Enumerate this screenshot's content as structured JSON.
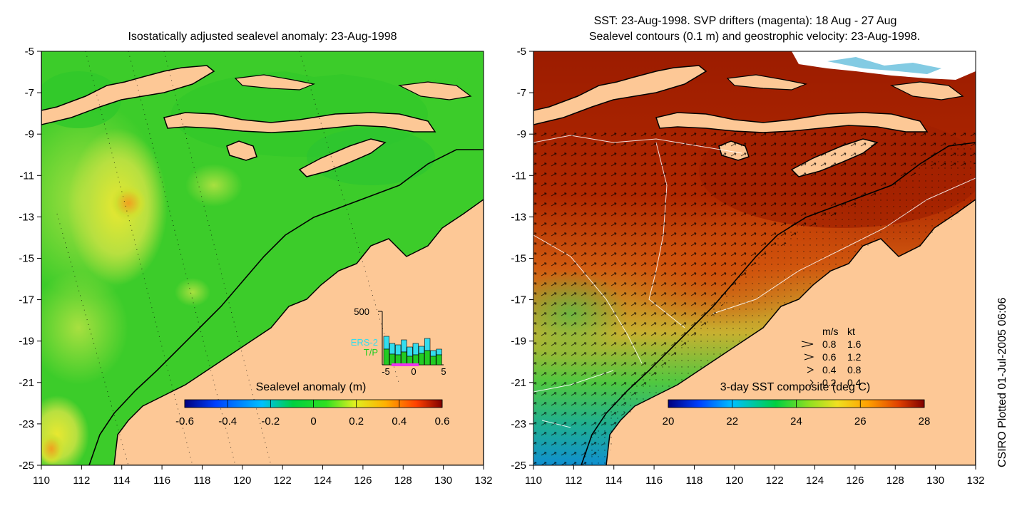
{
  "left_panel": {
    "title": "Isostatically adjusted sealevel anomaly: 23-Aug-1998",
    "x_ticks": [
      "110",
      "112",
      "114",
      "116",
      "118",
      "120",
      "122",
      "124",
      "126",
      "128",
      "130",
      "132"
    ],
    "y_ticks": [
      "-5",
      "-7",
      "-9",
      "-11",
      "-13",
      "-15",
      "-17",
      "-19",
      "-21",
      "-23",
      "-25"
    ],
    "colorbar": {
      "label": "Sealevel anomaly (m)",
      "ticks": [
        "-0.6",
        "-0.4",
        "-0.2",
        "0",
        "0.2",
        "0.4",
        "0.6"
      ],
      "range": [
        -0.6,
        0.6
      ]
    },
    "histogram": {
      "y_max_label": "500",
      "x_ticks": [
        "-5",
        "0",
        "5"
      ],
      "series_labels": [
        "ERS-2",
        "T/P"
      ],
      "series_colors": [
        "#33ddee",
        "#22cc22"
      ],
      "highlight_color": "#ee33ee"
    }
  },
  "right_panel": {
    "title_line1": "SST: 23-Aug-1998. SVP drifters (magenta): 18 Aug - 27 Aug",
    "title_line2": "Sealevel contours (0.1 m) and geostrophic velocity: 23-Aug-1998.",
    "x_ticks": [
      "110",
      "112",
      "114",
      "116",
      "118",
      "120",
      "122",
      "124",
      "126",
      "128",
      "130",
      "132"
    ],
    "y_ticks": [
      "-5",
      "-7",
      "-9",
      "-11",
      "-13",
      "-15",
      "-17",
      "-19",
      "-21",
      "-23",
      "-25"
    ],
    "colorbar": {
      "label": "3-day SST composite (deg C)",
      "ticks": [
        "20",
        "22",
        "24",
        "26",
        "28"
      ],
      "range": [
        20,
        28
      ]
    },
    "velocity_legend": {
      "header_ms": "m/s",
      "header_kt": "kt",
      "rows": [
        {
          "ms": "0.8",
          "kt": "1.6"
        },
        {
          "ms": "0.6",
          "kt": "1.2"
        },
        {
          "ms": "0.4",
          "kt": "0.8"
        },
        {
          "ms": "0.2",
          "kt": "0.4"
        }
      ]
    }
  },
  "credit": "CSIRO Plotted 01-Jul-2005 06:06",
  "colors": {
    "land": "#fdc896",
    "ocean_base": "#22cc22",
    "sst_warm": "#a81800",
    "coastline": "#000000"
  }
}
